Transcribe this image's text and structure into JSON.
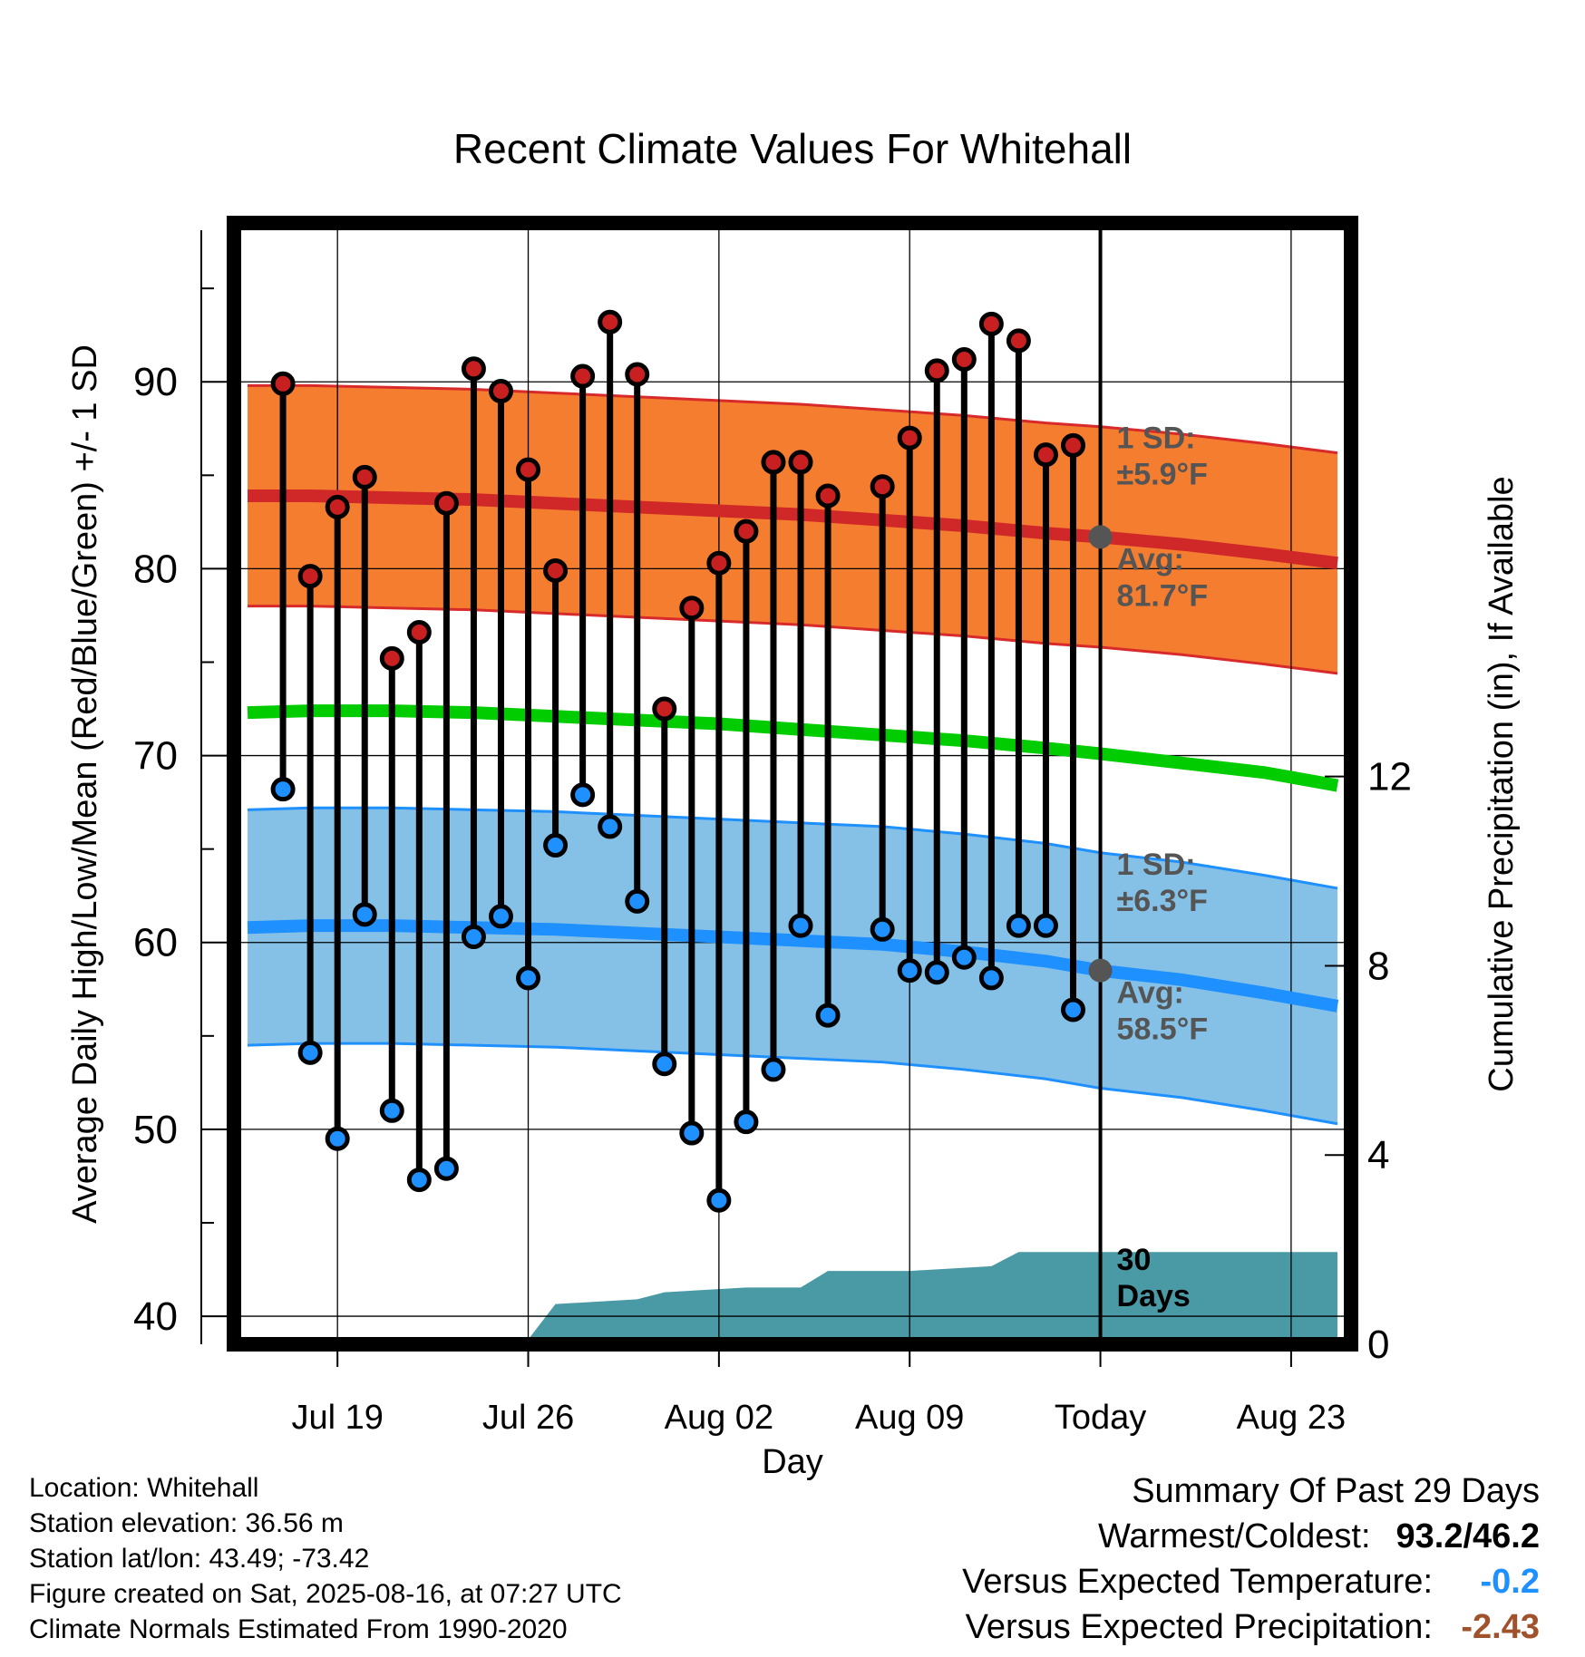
{
  "colors": {
    "high_band": "#f47d2f",
    "high_band_edge": "#d82a2a",
    "high_avg": "#d02828",
    "low_band": "#85c1e6",
    "low_band_edge": "#1e90ff",
    "low_avg": "#1e90ff",
    "mean": "#00cc00",
    "precip": "#4a9aa6",
    "high_marker": "#c82020",
    "low_marker": "#1e90ff",
    "today_marker": "#555555",
    "summary_temp": "#1e90ff",
    "summary_precip": "#a0522d"
  },
  "chart_data": {
    "type": "line",
    "title": "Recent Climate Values For Whitehall",
    "xlabel": "Day",
    "ylabel": "Average Daily High/Low/Mean (Red/Blue/Green) +/- 1 SD",
    "y2label": "Cumulative Precipitation (in), If Available",
    "ylim": [
      38.5,
      98.5
    ],
    "y2lim": [
      0,
      23.7
    ],
    "yticks": [
      40,
      50,
      60,
      70,
      80,
      90
    ],
    "y2ticks": [
      0,
      4,
      8,
      12
    ],
    "xlim": [
      -0.8,
      40.2
    ],
    "xticks": [
      {
        "x": 3,
        "label": "Jul 19"
      },
      {
        "x": 10,
        "label": "Jul 26"
      },
      {
        "x": 17,
        "label": "Aug 02"
      },
      {
        "x": 24,
        "label": "Aug 09"
      },
      {
        "x": 31,
        "label": "Today"
      },
      {
        "x": 38,
        "label": "Aug 23"
      }
    ],
    "grid": true,
    "days": [
      1,
      2,
      3,
      4,
      5,
      6,
      7,
      8,
      9,
      10,
      11,
      12,
      13,
      14,
      15,
      16,
      17,
      18,
      19,
      20,
      21,
      23,
      24,
      25,
      26,
      27,
      28,
      29,
      30
    ],
    "highs": [
      89.9,
      79.6,
      83.3,
      84.9,
      75.2,
      76.6,
      83.5,
      90.7,
      89.5,
      85.3,
      79.9,
      90.3,
      93.2,
      90.4,
      72.5,
      77.9,
      80.3,
      82.0,
      85.7,
      85.7,
      83.9,
      84.4,
      87.0,
      90.6,
      91.2,
      93.1,
      92.2,
      86.1,
      86.6
    ],
    "lows": [
      68.2,
      54.1,
      49.5,
      61.5,
      51.0,
      47.3,
      47.9,
      60.3,
      61.4,
      58.1,
      65.2,
      67.9,
      66.2,
      62.2,
      53.5,
      49.8,
      46.2,
      50.4,
      53.2,
      60.9,
      56.1,
      60.7,
      58.5,
      58.4,
      59.2,
      58.1,
      60.9,
      60.9,
      56.4
    ],
    "normal_x": [
      -0.3,
      2,
      5,
      8,
      11,
      14,
      17,
      20,
      23,
      26,
      29,
      31,
      34,
      37,
      39.7
    ],
    "normal_high": [
      83.9,
      83.9,
      83.8,
      83.7,
      83.5,
      83.3,
      83.1,
      82.9,
      82.6,
      82.3,
      81.9,
      81.7,
      81.3,
      80.8,
      80.3
    ],
    "normal_low": [
      60.8,
      60.9,
      60.9,
      60.8,
      60.7,
      60.5,
      60.3,
      60.1,
      59.9,
      59.5,
      59.0,
      58.5,
      58.0,
      57.3,
      56.6
    ],
    "normal_mean": [
      72.3,
      72.4,
      72.4,
      72.3,
      72.1,
      71.9,
      71.7,
      71.4,
      71.1,
      70.8,
      70.4,
      70.1,
      69.6,
      69.1,
      68.4
    ],
    "sd_high": 5.9,
    "sd_low": 6.3,
    "precip_x": [
      -0.3,
      8,
      10,
      11,
      14,
      15,
      18,
      20,
      21,
      24,
      27,
      28,
      31,
      39.7
    ],
    "precip_cum": [
      0,
      0.05,
      0.1,
      0.85,
      0.95,
      1.1,
      1.2,
      1.2,
      1.55,
      1.55,
      1.65,
      1.95,
      1.95,
      1.95
    ],
    "today_x": 31,
    "today_high_avg": 81.7,
    "today_low_avg": 58.5,
    "annotations": {
      "high_sd": [
        "1 SD:",
        "±5.9°F"
      ],
      "high_avg": [
        "Avg:",
        "81.7°F"
      ],
      "low_sd": [
        "1 SD:",
        "±6.3°F"
      ],
      "low_avg": [
        "Avg:",
        "58.5°F"
      ],
      "precip_days": [
        "30",
        "Days"
      ]
    }
  },
  "info": {
    "location": "Location: Whitehall",
    "elevation": "Station elevation: 36.56 m",
    "latlon": "Station lat/lon: 43.49; -73.42",
    "created": "Figure created on Sat, 2025-08-16, at 07:27 UTC",
    "normals": "Climate Normals Estimated From 1990-2020"
  },
  "summary": {
    "title": "Summary Of Past 29 Days",
    "warmest_label": "Warmest/Coldest:",
    "warmest_value": "93.2/46.2",
    "temp_label": "Versus Expected Temperature:",
    "temp_value": "-0.2",
    "precip_label": "Versus Expected Precipitation:",
    "precip_value": "-2.43"
  }
}
